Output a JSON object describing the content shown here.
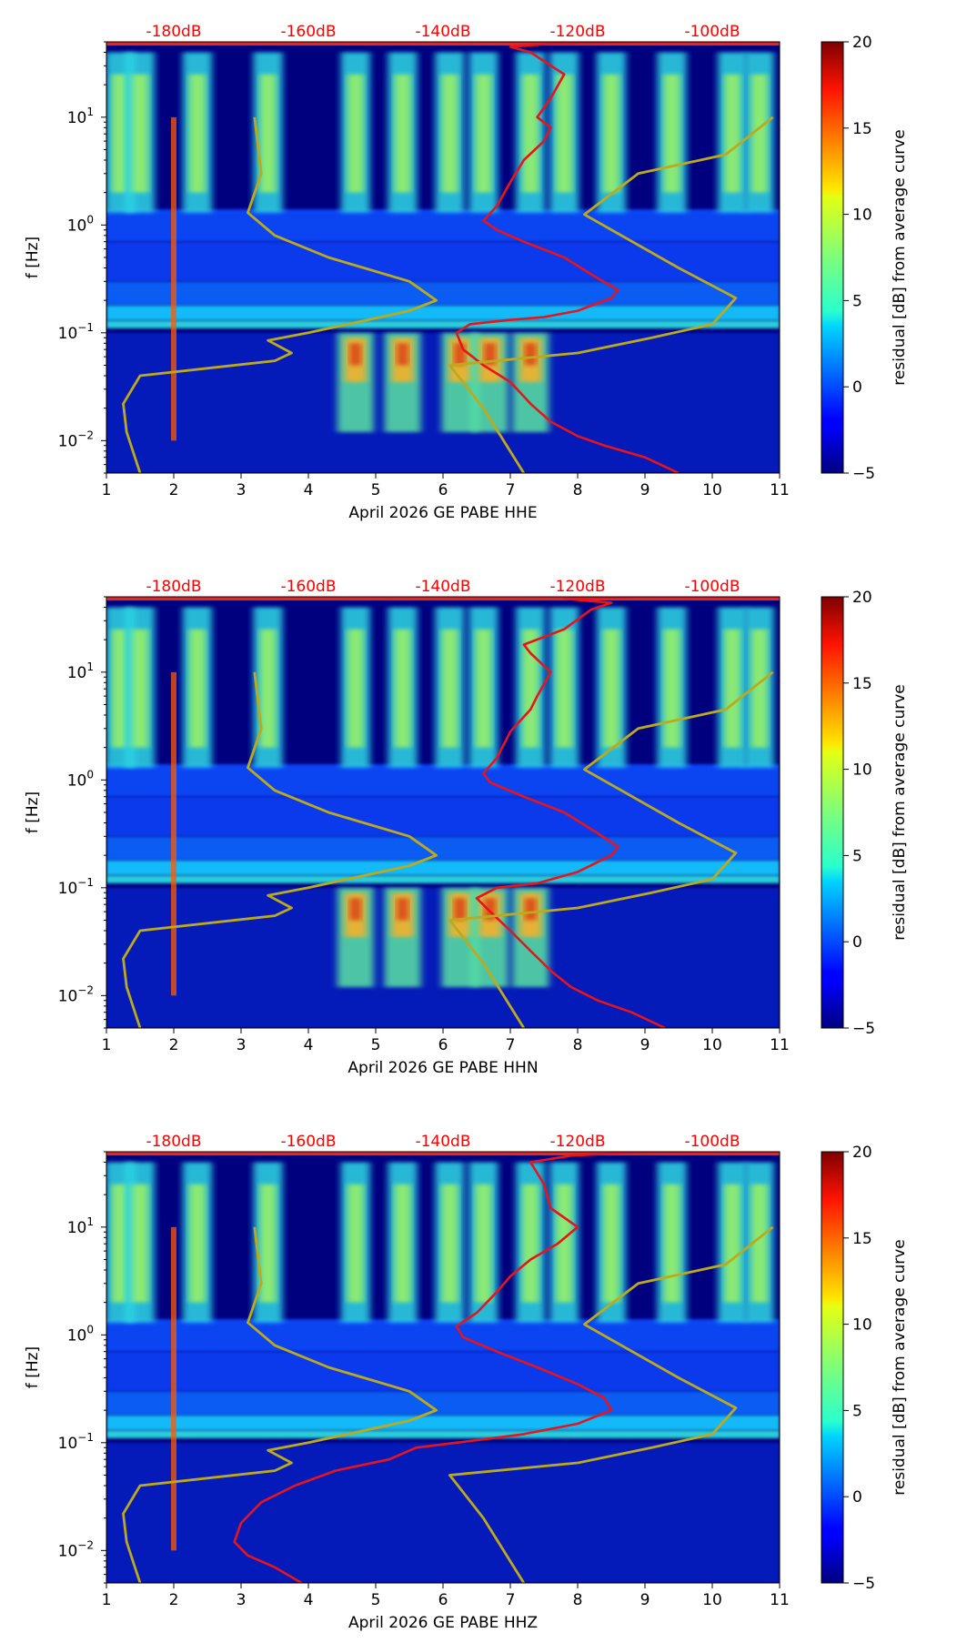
{
  "chart_data": [
    {
      "type": "heatmap",
      "title": "",
      "xlabel": "April 2026 GE PABE  HHE",
      "ylabel": "f [Hz]",
      "xlim": [
        1,
        11
      ],
      "x_ticks": [
        "1",
        "2",
        "3",
        "4",
        "5",
        "6",
        "7",
        "8",
        "9",
        "10",
        "11"
      ],
      "y_scale": "log",
      "ylim": [
        0.005,
        50
      ],
      "y_ticks": [
        {
          "label": "10",
          "exp": "1",
          "value": 10
        },
        {
          "label": "10",
          "exp": "0",
          "value": 1
        },
        {
          "label": "10",
          "exp": "−1",
          "value": 0.1
        },
        {
          "label": "10",
          "exp": "−2",
          "value": 0.01
        }
      ],
      "top_axis_labels": [
        "-180dB",
        "-160dB",
        "-140dB",
        "-120dB",
        "-100dB"
      ],
      "top_axis_positions": [
        2,
        4,
        6,
        8,
        10
      ],
      "colorbar": {
        "label": "residual [dB] from average curve",
        "min": -5,
        "max": 20,
        "ticks": [
          "20",
          "15",
          "10",
          "5",
          "0",
          "−5"
        ],
        "tick_values": [
          20,
          15,
          10,
          5,
          0,
          -5
        ]
      },
      "columns": [
        1.2,
        1.5,
        2.35,
        3.4,
        4.7,
        5.4,
        6.1,
        6.6,
        7.3,
        7.8,
        8.5,
        9.4,
        10.3,
        10.7
      ],
      "night_mid_columns": [
        4.7,
        5.4,
        6.25,
        6.7,
        7.3
      ],
      "series": [
        {
          "name": "station PSD (red)",
          "color": "#e8141b",
          "points": [
            [
              9.5,
              0.005
            ],
            [
              9.0,
              0.007
            ],
            [
              8.4,
              0.009
            ],
            [
              8.0,
              0.011
            ],
            [
              7.6,
              0.015
            ],
            [
              7.3,
              0.022
            ],
            [
              7.0,
              0.035
            ],
            [
              6.6,
              0.05
            ],
            [
              6.3,
              0.07
            ],
            [
              6.2,
              0.1
            ],
            [
              6.4,
              0.12
            ],
            [
              6.9,
              0.13
            ],
            [
              7.5,
              0.14
            ],
            [
              8.0,
              0.16
            ],
            [
              8.5,
              0.21
            ],
            [
              8.6,
              0.25
            ],
            [
              8.3,
              0.32
            ],
            [
              7.8,
              0.5
            ],
            [
              7.2,
              0.7
            ],
            [
              6.8,
              0.9
            ],
            [
              6.6,
              1.1
            ],
            [
              6.8,
              1.5
            ],
            [
              7.0,
              2.5
            ],
            [
              7.2,
              4
            ],
            [
              7.5,
              6
            ],
            [
              7.6,
              8
            ],
            [
              7.4,
              10
            ],
            [
              7.6,
              15
            ],
            [
              7.8,
              25
            ],
            [
              7.3,
              40
            ],
            [
              7.0,
              45
            ],
            [
              7.6,
              48
            ],
            [
              9.0,
              50
            ],
            [
              11.0,
              50
            ]
          ]
        },
        {
          "name": "low noise model (olive)",
          "color": "#bdaa1c",
          "points": [
            [
              1.5,
              0.005
            ],
            [
              1.3,
              0.012
            ],
            [
              1.25,
              0.022
            ],
            [
              1.5,
              0.04
            ],
            [
              3.5,
              0.055
            ],
            [
              3.75,
              0.065
            ],
            [
              3.4,
              0.085
            ],
            [
              4.0,
              0.1
            ],
            [
              5.5,
              0.16
            ],
            [
              5.9,
              0.2
            ],
            [
              5.5,
              0.3
            ],
            [
              4.3,
              0.5
            ],
            [
              3.5,
              0.8
            ],
            [
              3.1,
              1.3
            ],
            [
              3.3,
              3
            ],
            [
              3.2,
              10
            ]
          ]
        },
        {
          "name": "high noise model (olive)",
          "color": "#bdaa1c",
          "points": [
            [
              7.2,
              0.005
            ],
            [
              6.6,
              0.02
            ],
            [
              6.1,
              0.05
            ],
            [
              8.0,
              0.065
            ],
            [
              9.1,
              0.09
            ],
            [
              10.0,
              0.12
            ],
            [
              10.35,
              0.21
            ],
            [
              9.5,
              0.4
            ],
            [
              8.1,
              1.25
            ],
            [
              8.9,
              3
            ],
            [
              10.2,
              4.5
            ],
            [
              10.9,
              10
            ]
          ]
        }
      ]
    },
    {
      "type": "heatmap",
      "title": "",
      "xlabel": "April 2026 GE PABE  HHN",
      "ylabel": "f [Hz]",
      "xlim": [
        1,
        11
      ],
      "x_ticks": [
        "1",
        "2",
        "3",
        "4",
        "5",
        "6",
        "7",
        "8",
        "9",
        "10",
        "11"
      ],
      "y_scale": "log",
      "ylim": [
        0.005,
        50
      ],
      "y_ticks": [
        {
          "label": "10",
          "exp": "1",
          "value": 10
        },
        {
          "label": "10",
          "exp": "0",
          "value": 1
        },
        {
          "label": "10",
          "exp": "−1",
          "value": 0.1
        },
        {
          "label": "10",
          "exp": "−2",
          "value": 0.01
        }
      ],
      "top_axis_labels": [
        "-180dB",
        "-160dB",
        "-140dB",
        "-120dB",
        "-100dB"
      ],
      "top_axis_positions": [
        2,
        4,
        6,
        8,
        10
      ],
      "colorbar": {
        "label": "residual [dB] from average curve",
        "min": -5,
        "max": 20,
        "ticks": [
          "20",
          "15",
          "10",
          "5",
          "0",
          "−5"
        ],
        "tick_values": [
          20,
          15,
          10,
          5,
          0,
          -5
        ]
      },
      "columns": [
        1.2,
        1.5,
        2.35,
        3.4,
        4.7,
        5.4,
        6.1,
        6.6,
        7.3,
        7.8,
        8.5,
        9.4,
        10.3,
        10.7
      ],
      "night_mid_columns": [
        4.7,
        5.4,
        6.25,
        6.7,
        7.3
      ],
      "series": [
        {
          "name": "station PSD (red)",
          "color": "#e8141b",
          "points": [
            [
              9.3,
              0.005
            ],
            [
              8.8,
              0.007
            ],
            [
              8.3,
              0.009
            ],
            [
              7.9,
              0.012
            ],
            [
              7.6,
              0.017
            ],
            [
              7.3,
              0.026
            ],
            [
              7.0,
              0.04
            ],
            [
              6.7,
              0.06
            ],
            [
              6.5,
              0.08
            ],
            [
              6.8,
              0.1
            ],
            [
              7.4,
              0.11
            ],
            [
              8.0,
              0.14
            ],
            [
              8.5,
              0.2
            ],
            [
              8.6,
              0.24
            ],
            [
              8.3,
              0.32
            ],
            [
              7.8,
              0.5
            ],
            [
              7.2,
              0.7
            ],
            [
              6.7,
              0.95
            ],
            [
              6.6,
              1.15
            ],
            [
              6.8,
              1.6
            ],
            [
              7.0,
              2.8
            ],
            [
              7.3,
              4.5
            ],
            [
              7.4,
              6
            ],
            [
              7.6,
              10
            ],
            [
              7.3,
              15
            ],
            [
              7.2,
              18
            ],
            [
              7.8,
              25
            ],
            [
              8.2,
              38
            ],
            [
              8.5,
              44
            ],
            [
              7.8,
              48
            ],
            [
              9.0,
              50
            ],
            [
              11.0,
              50
            ]
          ]
        },
        {
          "name": "low noise model (olive)",
          "color": "#bdaa1c",
          "points": [
            [
              1.5,
              0.005
            ],
            [
              1.3,
              0.012
            ],
            [
              1.25,
              0.022
            ],
            [
              1.5,
              0.04
            ],
            [
              3.5,
              0.055
            ],
            [
              3.75,
              0.065
            ],
            [
              3.4,
              0.085
            ],
            [
              4.0,
              0.1
            ],
            [
              5.5,
              0.16
            ],
            [
              5.9,
              0.2
            ],
            [
              5.5,
              0.3
            ],
            [
              4.3,
              0.5
            ],
            [
              3.5,
              0.8
            ],
            [
              3.1,
              1.3
            ],
            [
              3.3,
              3
            ],
            [
              3.2,
              10
            ]
          ]
        },
        {
          "name": "high noise model (olive)",
          "color": "#bdaa1c",
          "points": [
            [
              7.2,
              0.005
            ],
            [
              6.6,
              0.02
            ],
            [
              6.1,
              0.05
            ],
            [
              8.0,
              0.065
            ],
            [
              9.1,
              0.09
            ],
            [
              10.0,
              0.12
            ],
            [
              10.35,
              0.21
            ],
            [
              9.5,
              0.4
            ],
            [
              8.1,
              1.25
            ],
            [
              8.9,
              3
            ],
            [
              10.2,
              4.5
            ],
            [
              10.9,
              10
            ]
          ]
        }
      ]
    },
    {
      "type": "heatmap",
      "title": "",
      "xlabel": "April 2026 GE PABE  HHZ",
      "ylabel": "f [Hz]",
      "xlim": [
        1,
        11
      ],
      "x_ticks": [
        "1",
        "2",
        "3",
        "4",
        "5",
        "6",
        "7",
        "8",
        "9",
        "10",
        "11"
      ],
      "y_scale": "log",
      "ylim": [
        0.005,
        50
      ],
      "y_ticks": [
        {
          "label": "10",
          "exp": "1",
          "value": 10
        },
        {
          "label": "10",
          "exp": "0",
          "value": 1
        },
        {
          "label": "10",
          "exp": "−1",
          "value": 0.1
        },
        {
          "label": "10",
          "exp": "−2",
          "value": 0.01
        }
      ],
      "top_axis_labels": [
        "-180dB",
        "-160dB",
        "-140dB",
        "-120dB",
        "-100dB"
      ],
      "top_axis_positions": [
        2,
        4,
        6,
        8,
        10
      ],
      "colorbar": {
        "label": "residual [dB] from average curve",
        "min": -5,
        "max": 20,
        "ticks": [
          "20",
          "15",
          "10",
          "5",
          "0",
          "−5"
        ],
        "tick_values": [
          20,
          15,
          10,
          5,
          0,
          -5
        ]
      },
      "columns": [
        1.2,
        1.5,
        2.35,
        3.4,
        4.7,
        5.4,
        6.1,
        6.6,
        7.3,
        7.8,
        8.5,
        9.4,
        10.3,
        10.7
      ],
      "night_mid_columns": [],
      "series": [
        {
          "name": "station PSD (red)",
          "color": "#e8141b",
          "points": [
            [
              3.9,
              0.005
            ],
            [
              3.5,
              0.007
            ],
            [
              3.1,
              0.009
            ],
            [
              2.9,
              0.012
            ],
            [
              3.0,
              0.018
            ],
            [
              3.3,
              0.028
            ],
            [
              3.8,
              0.04
            ],
            [
              4.4,
              0.055
            ],
            [
              5.2,
              0.07
            ],
            [
              5.6,
              0.09
            ],
            [
              6.2,
              0.1
            ],
            [
              7.2,
              0.12
            ],
            [
              8.0,
              0.15
            ],
            [
              8.5,
              0.2
            ],
            [
              8.4,
              0.26
            ],
            [
              8.0,
              0.35
            ],
            [
              7.4,
              0.5
            ],
            [
              6.8,
              0.7
            ],
            [
              6.3,
              0.95
            ],
            [
              6.2,
              1.2
            ],
            [
              6.5,
              1.6
            ],
            [
              6.8,
              2.5
            ],
            [
              7.0,
              3.5
            ],
            [
              7.3,
              5
            ],
            [
              7.7,
              7
            ],
            [
              8.0,
              10
            ],
            [
              7.6,
              15
            ],
            [
              7.5,
              25
            ],
            [
              7.3,
              40
            ],
            [
              7.9,
              46
            ],
            [
              9.0,
              50
            ],
            [
              11.0,
              50
            ]
          ]
        },
        {
          "name": "low noise model (olive)",
          "color": "#bdaa1c",
          "points": [
            [
              1.5,
              0.005
            ],
            [
              1.3,
              0.012
            ],
            [
              1.25,
              0.022
            ],
            [
              1.5,
              0.04
            ],
            [
              3.5,
              0.055
            ],
            [
              3.75,
              0.065
            ],
            [
              3.4,
              0.085
            ],
            [
              4.0,
              0.1
            ],
            [
              5.5,
              0.16
            ],
            [
              5.9,
              0.2
            ],
            [
              5.5,
              0.3
            ],
            [
              4.3,
              0.5
            ],
            [
              3.5,
              0.8
            ],
            [
              3.1,
              1.3
            ],
            [
              3.3,
              3
            ],
            [
              3.2,
              10
            ]
          ]
        },
        {
          "name": "high noise model (olive)",
          "color": "#bdaa1c",
          "points": [
            [
              7.2,
              0.005
            ],
            [
              6.6,
              0.02
            ],
            [
              6.1,
              0.05
            ],
            [
              8.0,
              0.065
            ],
            [
              9.1,
              0.09
            ],
            [
              10.0,
              0.12
            ],
            [
              10.35,
              0.21
            ],
            [
              9.5,
              0.4
            ],
            [
              8.1,
              1.25
            ],
            [
              8.9,
              3
            ],
            [
              10.2,
              4.5
            ],
            [
              10.9,
              10
            ]
          ]
        }
      ]
    }
  ]
}
